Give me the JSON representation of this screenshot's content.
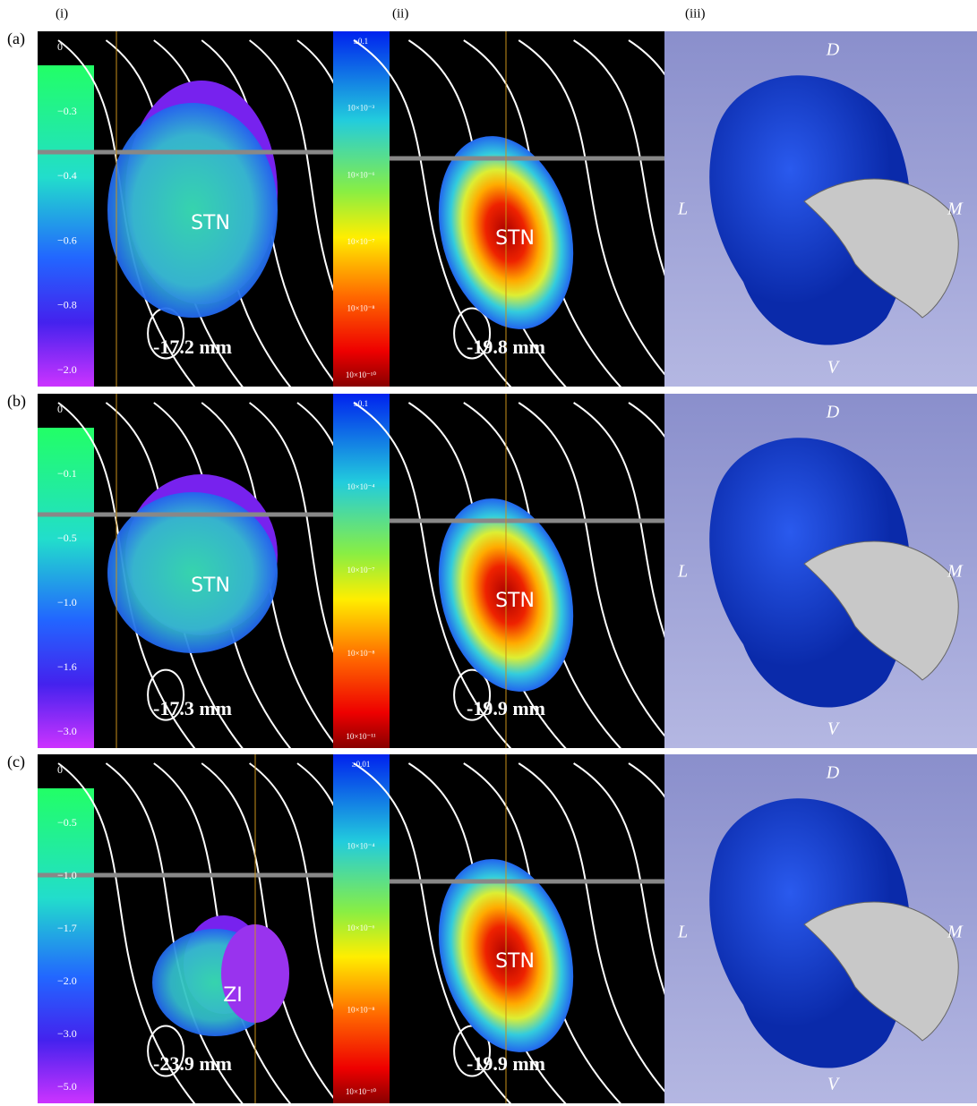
{
  "column_labels": [
    "(i)",
    "(ii)",
    "(iii)"
  ],
  "rows": [
    {
      "label": "(a)",
      "colorbar_i": [
        "0",
        "−0.3",
        "−0.4",
        "−0.6",
        "−0.8",
        "−2.0"
      ],
      "region_i": "STN",
      "depth_i": "-17.2 mm",
      "colorbar_ii": [
        "≥0.1",
        "10×10⁻³",
        "10×10⁻⁶",
        "10×10⁻⁷",
        "10×10⁻⁸",
        "10×10⁻¹⁰"
      ],
      "region_ii": "STN",
      "depth_ii": "-19.8 mm",
      "orientation": {
        "D": "D",
        "V": "V",
        "L": "L",
        "M": "M"
      }
    },
    {
      "label": "(b)",
      "colorbar_i": [
        "0",
        "−0.1",
        "−0.5",
        "−1.0",
        "−1.6",
        "−3.0"
      ],
      "region_i": "STN",
      "depth_i": "-17.3 mm",
      "colorbar_ii": [
        "≥0.1",
        "10×10⁻⁴",
        "10×10⁻⁷",
        "10×10⁻⁸",
        "10×10⁻¹¹"
      ],
      "region_ii": "STN",
      "depth_ii": "-19.9 mm",
      "orientation": {
        "D": "D",
        "V": "V",
        "L": "L",
        "M": "M"
      }
    },
    {
      "label": "(c)",
      "colorbar_i": [
        "0",
        "−0.5",
        "−1.0",
        "−1.7",
        "−2.0",
        "−3.0",
        "−5.0"
      ],
      "region_i": "ZI",
      "depth_i": "-23.9 mm",
      "colorbar_ii": [
        "≥0.01",
        "10×10⁻⁴",
        "10×10⁻⁶",
        "10×10⁻⁸",
        "10×10⁻¹⁰"
      ],
      "region_ii": "STN",
      "depth_ii": "-19.9 mm",
      "orientation": {
        "D": "D",
        "V": "V",
        "L": "L",
        "M": "M"
      }
    }
  ]
}
